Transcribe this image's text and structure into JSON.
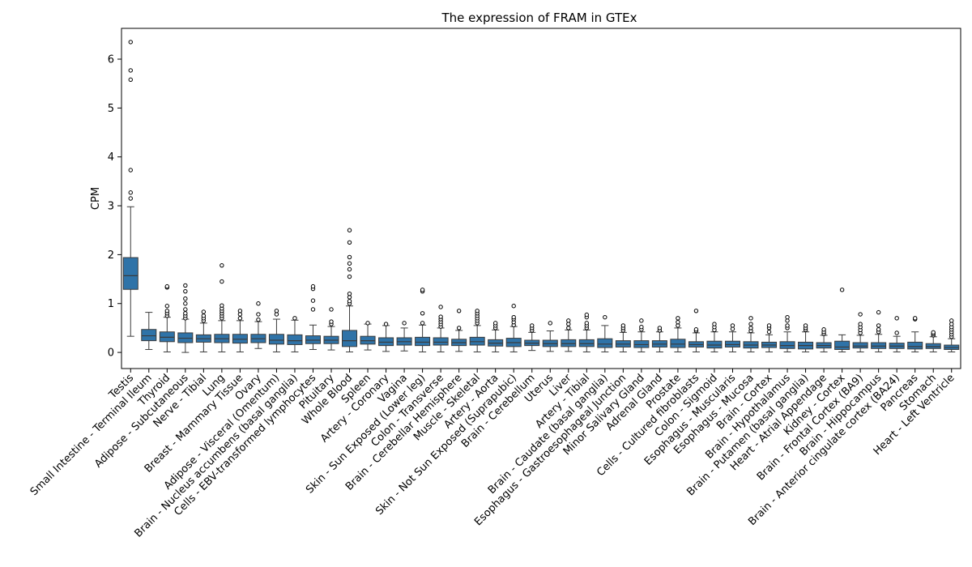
{
  "chart_data": {
    "type": "boxplot",
    "title": "The expression of FRAM in GTEx",
    "xlabel": "",
    "ylabel": "CPM",
    "ylim": [
      -0.33,
      6.63
    ],
    "yticks": [
      0,
      1,
      2,
      3,
      4,
      5,
      6
    ],
    "grid": false,
    "color": "#2f73a8",
    "categories": [
      "Testis",
      "Small Intestine - Terminal Ileum",
      "Thyroid",
      "Adipose - Subcutaneous",
      "Nerve - Tibial",
      "Lung",
      "Breast - Mammary Tissue",
      "Ovary",
      "Adipose - Visceral (Omentum)",
      "Brain - Nucleus accumbens (basal ganglia)",
      "Cells - EBV-transformed lymphocytes",
      "Pituitary",
      "Whole Blood",
      "Spleen",
      "Artery - Coronary",
      "Vagina",
      "Skin - Sun Exposed (Lower leg)",
      "Colon - Transverse",
      "Brain - Cerebellar Hemisphere",
      "Muscle - Skeletal",
      "Artery - Aorta",
      "Skin - Not Sun Exposed (Suprapubic)",
      "Brain - Cerebellum",
      "Uterus",
      "Liver",
      "Artery - Tibial",
      "Brain - Caudate (basal ganglia)",
      "Esophagus - Gastroesophageal Junction",
      "Minor Salivary Gland",
      "Adrenal Gland",
      "Prostate",
      "Cells - Cultured fibroblasts",
      "Colon - Sigmoid",
      "Esophagus - Muscularis",
      "Esophagus - Mucosa",
      "Brain - Cortex",
      "Brain - Hypothalamus",
      "Brain - Putamen (basal ganglia)",
      "Heart - Atrial Appendage",
      "Kidney - Cortex",
      "Brain - Frontal Cortex (BA9)",
      "Brain - Hippocampus",
      "Brain - Anterior cingulate cortex (BA24)",
      "Pancreas",
      "Stomach",
      "Heart - Left Ventricle"
    ],
    "boxes": [
      {
        "q1": 1.29,
        "median": 1.57,
        "q3": 1.94,
        "whisker_low": 0.33,
        "whisker_high": 2.98,
        "outliers": [
          3.15,
          3.27,
          3.73,
          5.58,
          5.77,
          6.35
        ]
      },
      {
        "q1": 0.24,
        "median": 0.34,
        "q3": 0.47,
        "whisker_low": 0.06,
        "whisker_high": 0.82,
        "outliers": []
      },
      {
        "q1": 0.22,
        "median": 0.31,
        "q3": 0.42,
        "whisker_low": 0.01,
        "whisker_high": 0.72,
        "outliers": [
          0.75,
          0.8,
          0.85,
          0.95,
          1.33,
          1.35
        ]
      },
      {
        "q1": 0.2,
        "median": 0.29,
        "q3": 0.4,
        "whisker_low": 0.0,
        "whisker_high": 0.68,
        "outliers": [
          0.7,
          0.75,
          0.8,
          0.88,
          1.0,
          1.1,
          1.25,
          1.37
        ]
      },
      {
        "q1": 0.21,
        "median": 0.28,
        "q3": 0.36,
        "whisker_low": 0.01,
        "whisker_high": 0.6,
        "outliers": [
          0.65,
          0.7,
          0.75,
          0.83
        ]
      },
      {
        "q1": 0.2,
        "median": 0.28,
        "q3": 0.37,
        "whisker_low": 0.01,
        "whisker_high": 0.65,
        "outliers": [
          0.7,
          0.75,
          0.8,
          0.85,
          0.9,
          0.96,
          1.45,
          1.78
        ]
      },
      {
        "q1": 0.19,
        "median": 0.27,
        "q3": 0.37,
        "whisker_low": 0.01,
        "whisker_high": 0.65,
        "outliers": [
          0.7,
          0.78,
          0.85
        ]
      },
      {
        "q1": 0.2,
        "median": 0.28,
        "q3": 0.37,
        "whisker_low": 0.08,
        "whisker_high": 0.63,
        "outliers": [
          0.67,
          0.78,
          1.0
        ]
      },
      {
        "q1": 0.17,
        "median": 0.25,
        "q3": 0.37,
        "whisker_low": 0.01,
        "whisker_high": 0.68,
        "outliers": [
          0.78,
          0.85
        ]
      },
      {
        "q1": 0.16,
        "median": 0.24,
        "q3": 0.36,
        "whisker_low": 0.01,
        "whisker_high": 0.66,
        "outliers": [
          0.7
        ]
      },
      {
        "q1": 0.18,
        "median": 0.25,
        "q3": 0.34,
        "whisker_low": 0.06,
        "whisker_high": 0.56,
        "outliers": [
          0.88,
          1.06,
          1.3,
          1.35
        ]
      },
      {
        "q1": 0.18,
        "median": 0.25,
        "q3": 0.33,
        "whisker_low": 0.05,
        "whisker_high": 0.53,
        "outliers": [
          0.58,
          0.63,
          0.88
        ]
      },
      {
        "q1": 0.12,
        "median": 0.24,
        "q3": 0.45,
        "whisker_low": 0.01,
        "whisker_high": 0.95,
        "outliers": [
          1.0,
          1.05,
          1.13,
          1.2,
          1.55,
          1.7,
          1.82,
          1.95,
          2.25,
          2.5
        ]
      },
      {
        "q1": 0.17,
        "median": 0.24,
        "q3": 0.33,
        "whisker_low": 0.05,
        "whisker_high": 0.58,
        "outliers": [
          0.6
        ]
      },
      {
        "q1": 0.14,
        "median": 0.21,
        "q3": 0.3,
        "whisker_low": 0.02,
        "whisker_high": 0.55,
        "outliers": [
          0.58
        ]
      },
      {
        "q1": 0.15,
        "median": 0.22,
        "q3": 0.3,
        "whisker_low": 0.03,
        "whisker_high": 0.5,
        "outliers": [
          0.6
        ]
      },
      {
        "q1": 0.14,
        "median": 0.21,
        "q3": 0.31,
        "whisker_low": 0.01,
        "whisker_high": 0.56,
        "outliers": [
          0.6,
          0.8,
          1.25,
          1.28
        ]
      },
      {
        "q1": 0.15,
        "median": 0.21,
        "q3": 0.3,
        "whisker_low": 0.01,
        "whisker_high": 0.5,
        "outliers": [
          0.53,
          0.58,
          0.63,
          0.68,
          0.73,
          0.93
        ]
      },
      {
        "q1": 0.14,
        "median": 0.2,
        "q3": 0.27,
        "whisker_low": 0.02,
        "whisker_high": 0.45,
        "outliers": [
          0.5,
          0.85
        ]
      },
      {
        "q1": 0.15,
        "median": 0.22,
        "q3": 0.31,
        "whisker_low": 0.01,
        "whisker_high": 0.55,
        "outliers": [
          0.6,
          0.65,
          0.7,
          0.75,
          0.8,
          0.85
        ]
      },
      {
        "q1": 0.13,
        "median": 0.19,
        "q3": 0.26,
        "whisker_low": 0.01,
        "whisker_high": 0.46,
        "outliers": [
          0.5,
          0.55,
          0.6
        ]
      },
      {
        "q1": 0.12,
        "median": 0.2,
        "q3": 0.29,
        "whisker_low": 0.01,
        "whisker_high": 0.53,
        "outliers": [
          0.56,
          0.62,
          0.68,
          0.72,
          0.95
        ]
      },
      {
        "q1": 0.14,
        "median": 0.19,
        "q3": 0.25,
        "whisker_low": 0.04,
        "whisker_high": 0.41,
        "outliers": [
          0.45,
          0.5,
          0.55
        ]
      },
      {
        "q1": 0.12,
        "median": 0.18,
        "q3": 0.25,
        "whisker_low": 0.02,
        "whisker_high": 0.44,
        "outliers": [
          0.6
        ]
      },
      {
        "q1": 0.12,
        "median": 0.18,
        "q3": 0.26,
        "whisker_low": 0.02,
        "whisker_high": 0.46,
        "outliers": [
          0.5,
          0.58,
          0.65
        ]
      },
      {
        "q1": 0.12,
        "median": 0.18,
        "q3": 0.26,
        "whisker_low": 0.01,
        "whisker_high": 0.46,
        "outliers": [
          0.5,
          0.55,
          0.6,
          0.72,
          0.77
        ]
      },
      {
        "q1": 0.1,
        "median": 0.17,
        "q3": 0.28,
        "whisker_low": 0.01,
        "whisker_high": 0.55,
        "outliers": [
          0.72
        ]
      },
      {
        "q1": 0.11,
        "median": 0.17,
        "q3": 0.24,
        "whisker_low": 0.01,
        "whisker_high": 0.41,
        "outliers": [
          0.45,
          0.5,
          0.55
        ]
      },
      {
        "q1": 0.1,
        "median": 0.16,
        "q3": 0.24,
        "whisker_low": 0.01,
        "whisker_high": 0.42,
        "outliers": [
          0.47,
          0.52,
          0.65
        ]
      },
      {
        "q1": 0.11,
        "median": 0.17,
        "q3": 0.24,
        "whisker_low": 0.01,
        "whisker_high": 0.42,
        "outliers": [
          0.45,
          0.5
        ]
      },
      {
        "q1": 0.1,
        "median": 0.17,
        "q3": 0.27,
        "whisker_low": 0.01,
        "whisker_high": 0.5,
        "outliers": [
          0.55,
          0.62,
          0.7
        ]
      },
      {
        "q1": 0.11,
        "median": 0.16,
        "q3": 0.22,
        "whisker_low": 0.01,
        "whisker_high": 0.4,
        "outliers": [
          0.44,
          0.47,
          0.85
        ]
      },
      {
        "q1": 0.09,
        "median": 0.15,
        "q3": 0.23,
        "whisker_low": 0.01,
        "whisker_high": 0.42,
        "outliers": [
          0.46,
          0.52,
          0.58
        ]
      },
      {
        "q1": 0.11,
        "median": 0.16,
        "q3": 0.23,
        "whisker_low": 0.01,
        "whisker_high": 0.42,
        "outliers": [
          0.48,
          0.55
        ]
      },
      {
        "q1": 0.09,
        "median": 0.15,
        "q3": 0.22,
        "whisker_low": 0.01,
        "whisker_high": 0.4,
        "outliers": [
          0.44,
          0.5,
          0.58,
          0.7
        ]
      },
      {
        "q1": 0.1,
        "median": 0.15,
        "q3": 0.21,
        "whisker_low": 0.01,
        "whisker_high": 0.36,
        "outliers": [
          0.42,
          0.5,
          0.55
        ]
      },
      {
        "q1": 0.08,
        "median": 0.14,
        "q3": 0.22,
        "whisker_low": 0.01,
        "whisker_high": 0.42,
        "outliers": [
          0.5,
          0.55,
          0.65,
          0.72
        ]
      },
      {
        "q1": 0.07,
        "median": 0.14,
        "q3": 0.21,
        "whisker_low": 0.01,
        "whisker_high": 0.42,
        "outliers": [
          0.46,
          0.5,
          0.55
        ]
      },
      {
        "q1": 0.09,
        "median": 0.14,
        "q3": 0.2,
        "whisker_low": 0.01,
        "whisker_high": 0.35,
        "outliers": [
          0.38,
          0.42,
          0.47
        ]
      },
      {
        "q1": 0.06,
        "median": 0.11,
        "q3": 0.23,
        "whisker_low": 0.01,
        "whisker_high": 0.36,
        "outliers": [
          1.28
        ]
      },
      {
        "q1": 0.09,
        "median": 0.13,
        "q3": 0.2,
        "whisker_low": 0.01,
        "whisker_high": 0.35,
        "outliers": [
          0.4,
          0.46,
          0.52,
          0.58,
          0.78
        ]
      },
      {
        "q1": 0.08,
        "median": 0.13,
        "q3": 0.2,
        "whisker_low": 0.01,
        "whisker_high": 0.37,
        "outliers": [
          0.42,
          0.47,
          0.55,
          0.82
        ]
      },
      {
        "q1": 0.08,
        "median": 0.13,
        "q3": 0.19,
        "whisker_low": 0.01,
        "whisker_high": 0.33,
        "outliers": [
          0.4,
          0.7
        ]
      },
      {
        "q1": 0.07,
        "median": 0.12,
        "q3": 0.21,
        "whisker_low": 0.01,
        "whisker_high": 0.42,
        "outliers": [
          0.68,
          0.7
        ]
      },
      {
        "q1": 0.08,
        "median": 0.12,
        "q3": 0.18,
        "whisker_low": 0.01,
        "whisker_high": 0.32,
        "outliers": [
          0.35,
          0.38,
          0.41
        ]
      },
      {
        "q1": 0.06,
        "median": 0.1,
        "q3": 0.15,
        "whisker_low": 0.01,
        "whisker_high": 0.28,
        "outliers": [
          0.32,
          0.37,
          0.42,
          0.47,
          0.52,
          0.58,
          0.65
        ]
      }
    ]
  }
}
